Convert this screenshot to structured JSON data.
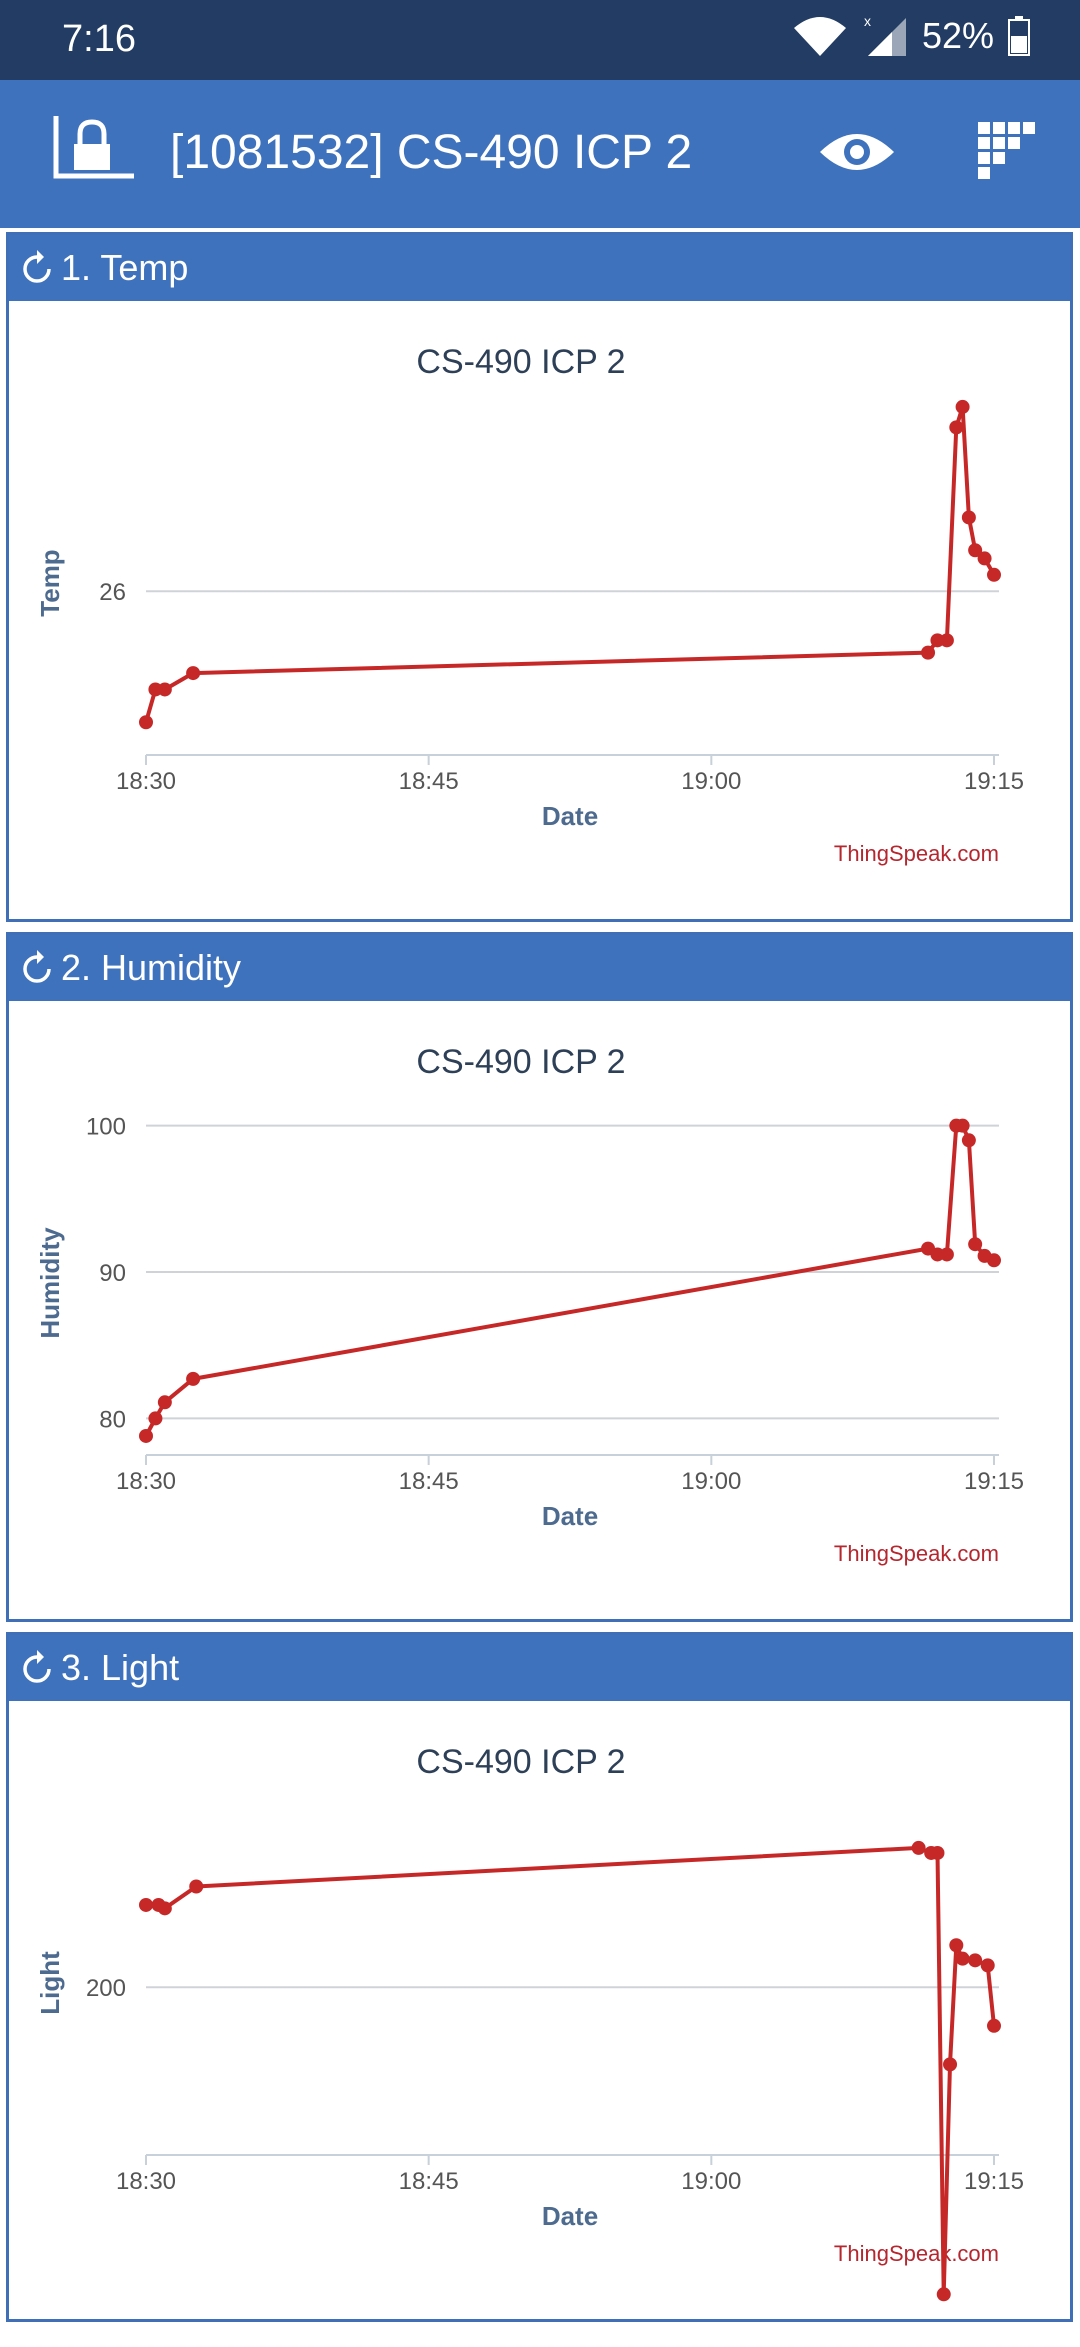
{
  "status_bar": {
    "time": "7:16",
    "battery": "52%",
    "icons": [
      "wifi-icon",
      "signal-icon",
      "battery-icon"
    ]
  },
  "app_bar": {
    "title": "[1081532] CS-490 ICP 2",
    "icons": [
      "scale-lock-icon",
      "eye-icon",
      "qr-code-icon"
    ],
    "color": "#3f72bd"
  },
  "panels": [
    {
      "title": "1. Temp"
    },
    {
      "title": "2. Humidity"
    },
    {
      "title": "3. Light"
    }
  ],
  "colors": {
    "series": "#c62828",
    "header": "#3f72bd",
    "axis_label": "#4d6a8f",
    "credit": "#b5262e"
  },
  "chart_data": [
    {
      "type": "line",
      "title": "CS-490 ICP 2",
      "xlabel": "Date",
      "ylabel": "Temp",
      "credit": "ThingSpeak.com",
      "x_ticks": [
        "18:30",
        "18:45",
        "19:00",
        "19:15"
      ],
      "xlim": [
        "18:30",
        "19:15"
      ],
      "y_ticks": [
        26
      ],
      "ylim": [
        24.0,
        28.2
      ],
      "grid": true,
      "series": [
        {
          "color": "#c62828",
          "x": [
            "18:30",
            "18:30:30",
            "18:31",
            "18:32:30",
            "19:11:30",
            "19:12",
            "19:12:30",
            "19:13",
            "19:13:20",
            "19:13:40",
            "19:14",
            "19:14:30",
            "19:15"
          ],
          "y": [
            24.4,
            24.8,
            24.8,
            25.0,
            25.25,
            25.4,
            25.4,
            28.0,
            28.25,
            26.9,
            26.5,
            26.4,
            26.2
          ]
        }
      ]
    },
    {
      "type": "line",
      "title": "CS-490 ICP 2",
      "xlabel": "Date",
      "ylabel": "Humidity",
      "credit": "ThingSpeak.com",
      "x_ticks": [
        "18:30",
        "18:45",
        "19:00",
        "19:15"
      ],
      "xlim": [
        "18:30",
        "19:15"
      ],
      "y_ticks": [
        80,
        90,
        100
      ],
      "ylim": [
        77.5,
        101
      ],
      "grid": true,
      "series": [
        {
          "color": "#c62828",
          "x": [
            "18:30",
            "18:30:30",
            "18:31",
            "18:32:30",
            "19:11:30",
            "19:12",
            "19:12:30",
            "19:13",
            "19:13:20",
            "19:13:40",
            "19:14",
            "19:14:30",
            "19:15"
          ],
          "y": [
            78.8,
            80.0,
            81.1,
            82.7,
            91.6,
            91.2,
            91.2,
            100.0,
            100.0,
            99.0,
            91.9,
            91.1,
            90.8
          ]
        }
      ]
    },
    {
      "type": "line",
      "title": "CS-490 ICP 2",
      "xlabel": "Date",
      "ylabel": "Light",
      "credit": "ThingSpeak.com",
      "x_ticks": [
        "18:30",
        "18:45",
        "19:00",
        "19:15"
      ],
      "xlim": [
        "18:30",
        "19:15"
      ],
      "y_ticks": [
        200
      ],
      "ylim": [
        100,
        305
      ],
      "grid": true,
      "series": [
        {
          "color": "#c62828",
          "x": [
            "18:30",
            "18:30:40",
            "18:31",
            "18:32:40",
            "19:11",
            "19:11:40",
            "19:12",
            "19:12:20",
            "19:12:40",
            "19:13",
            "19:13:20",
            "19:14",
            "19:14:40",
            "19:15"
          ],
          "y": [
            249,
            249,
            247,
            260,
            283,
            280,
            280,
            17,
            154,
            225,
            217,
            216,
            213,
            177
          ]
        }
      ]
    }
  ]
}
